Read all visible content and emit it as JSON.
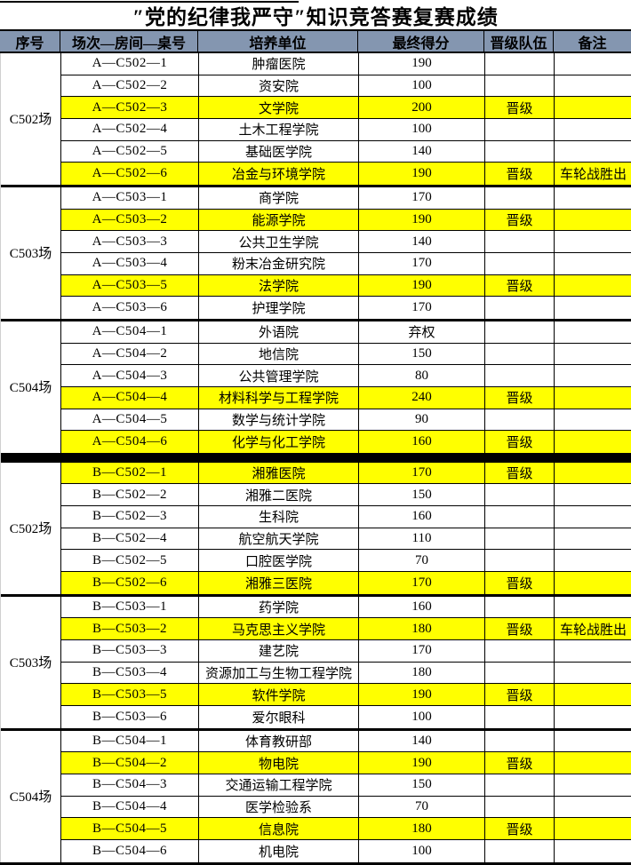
{
  "title": "″党的纪律我严守″知识竞答赛复赛成绩",
  "columns": {
    "index": "序号",
    "session": "场次—房间—桌号",
    "unit": "培养单位",
    "score": "最终得分",
    "promotion": "晋级队伍",
    "note": "备注"
  },
  "colors": {
    "header_bg": "#8496B0",
    "highlight_bg": "#FFFF00",
    "border": "#000000"
  },
  "sections": [
    {
      "name": "A",
      "groups": [
        {
          "venue": "C502场",
          "rows": [
            {
              "code": "A—C502—1",
              "unit": "肿瘤医院",
              "score": "190",
              "promotion": "",
              "note": "",
              "highlight": false
            },
            {
              "code": "A—C502—2",
              "unit": "资安院",
              "score": "100",
              "promotion": "",
              "note": "",
              "highlight": false
            },
            {
              "code": "A—C502—3",
              "unit": "文学院",
              "score": "200",
              "promotion": "晋级",
              "note": "",
              "highlight": true
            },
            {
              "code": "A—C502—4",
              "unit": "土木工程学院",
              "score": "100",
              "promotion": "",
              "note": "",
              "highlight": false
            },
            {
              "code": "A—C502—5",
              "unit": "基础医学院",
              "score": "140",
              "promotion": "",
              "note": "",
              "highlight": false
            },
            {
              "code": "A—C502—6",
              "unit": "冶金与环境学院",
              "score": "190",
              "promotion": "晋级",
              "note": "车轮战胜出",
              "highlight": true
            }
          ]
        },
        {
          "venue": "C503场",
          "rows": [
            {
              "code": "A—C503—1",
              "unit": "商学院",
              "score": "170",
              "promotion": "",
              "note": "",
              "highlight": false
            },
            {
              "code": "A—C503—2",
              "unit": "能源学院",
              "score": "190",
              "promotion": "晋级",
              "note": "",
              "highlight": true
            },
            {
              "code": "A—C503—3",
              "unit": "公共卫生学院",
              "score": "140",
              "promotion": "",
              "note": "",
              "highlight": false
            },
            {
              "code": "A—C503—4",
              "unit": "粉末冶金研究院",
              "score": "170",
              "promotion": "",
              "note": "",
              "highlight": false
            },
            {
              "code": "A—C503—5",
              "unit": "法学院",
              "score": "190",
              "promotion": "晋级",
              "note": "",
              "highlight": true
            },
            {
              "code": "A—C503—6",
              "unit": "护理学院",
              "score": "170",
              "promotion": "",
              "note": "",
              "highlight": false
            }
          ]
        },
        {
          "venue": "C504场",
          "rows": [
            {
              "code": "A—C504—1",
              "unit": "外语院",
              "score": "弃权",
              "promotion": "",
              "note": "",
              "highlight": false
            },
            {
              "code": "A—C504—2",
              "unit": "地信院",
              "score": "150",
              "promotion": "",
              "note": "",
              "highlight": false
            },
            {
              "code": "A—C504—3",
              "unit": "公共管理学院",
              "score": "80",
              "promotion": "",
              "note": "",
              "highlight": false
            },
            {
              "code": "A—C504—4",
              "unit": "材料科学与工程学院",
              "score": "240",
              "promotion": "晋级",
              "note": "",
              "highlight": true
            },
            {
              "code": "A—C504—5",
              "unit": "数学与统计学院",
              "score": "90",
              "promotion": "",
              "note": "",
              "highlight": false
            },
            {
              "code": "A—C504—6",
              "unit": "化学与化工学院",
              "score": "160",
              "promotion": "晋级",
              "note": "",
              "highlight": true
            }
          ]
        }
      ]
    },
    {
      "name": "B",
      "groups": [
        {
          "venue": "C502场",
          "rows": [
            {
              "code": "B—C502—1",
              "unit": "湘雅医院",
              "score": "170",
              "promotion": "晋级",
              "note": "",
              "highlight": true
            },
            {
              "code": "B—C502—2",
              "unit": "湘雅二医院",
              "score": "150",
              "promotion": "",
              "note": "",
              "highlight": false
            },
            {
              "code": "B—C502—3",
              "unit": "生科院",
              "score": "160",
              "promotion": "",
              "note": "",
              "highlight": false
            },
            {
              "code": "B—C502—4",
              "unit": "航空航天学院",
              "score": "110",
              "promotion": "",
              "note": "",
              "highlight": false
            },
            {
              "code": "B—C502—5",
              "unit": "口腔医学院",
              "score": "70",
              "promotion": "",
              "note": "",
              "highlight": false
            },
            {
              "code": "B—C502—6",
              "unit": "湘雅三医院",
              "score": "170",
              "promotion": "晋级",
              "note": "",
              "highlight": true
            }
          ]
        },
        {
          "venue": "C503场",
          "rows": [
            {
              "code": "B—C503—1",
              "unit": "药学院",
              "score": "160",
              "promotion": "",
              "note": "",
              "highlight": false
            },
            {
              "code": "B—C503—2",
              "unit": "马克思主义学院",
              "score": "180",
              "promotion": "晋级",
              "note": "车轮战胜出",
              "highlight": true
            },
            {
              "code": "B—C503—3",
              "unit": "建艺院",
              "score": "170",
              "promotion": "",
              "note": "",
              "highlight": false
            },
            {
              "code": "B—C503—4",
              "unit": "资源加工与生物工程学院",
              "score": "180",
              "promotion": "",
              "note": "",
              "highlight": false
            },
            {
              "code": "B—C503—5",
              "unit": "软件学院",
              "score": "190",
              "promotion": "晋级",
              "note": "",
              "highlight": true
            },
            {
              "code": "B—C503—6",
              "unit": "爱尔眼科",
              "score": "100",
              "promotion": "",
              "note": "",
              "highlight": false
            }
          ]
        },
        {
          "venue": "C504场",
          "rows": [
            {
              "code": "B—C504—1",
              "unit": "体育教研部",
              "score": "140",
              "promotion": "",
              "note": "",
              "highlight": false
            },
            {
              "code": "B—C504—2",
              "unit": "物电院",
              "score": "190",
              "promotion": "晋级",
              "note": "",
              "highlight": true
            },
            {
              "code": "B—C504—3",
              "unit": "交通运输工程学院",
              "score": "150",
              "promotion": "",
              "note": "",
              "highlight": false
            },
            {
              "code": "B—C504—4",
              "unit": "医学检验系",
              "score": "70",
              "promotion": "",
              "note": "",
              "highlight": false
            },
            {
              "code": "B—C504—5",
              "unit": "信息院",
              "score": "180",
              "promotion": "晋级",
              "note": "",
              "highlight": true
            },
            {
              "code": "B—C504—6",
              "unit": "机电院",
              "score": "100",
              "promotion": "",
              "note": "",
              "highlight": false
            }
          ]
        }
      ]
    }
  ]
}
